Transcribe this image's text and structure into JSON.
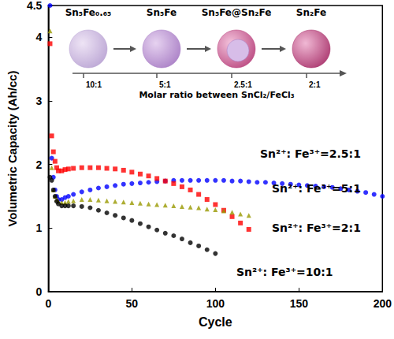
{
  "chart_data": {
    "type": "scatter",
    "x_label": "Cycle",
    "y_label": "Volumetric Capacity (Ah/cc)",
    "xlim": [
      0,
      200
    ],
    "xticks": [
      0,
      50,
      100,
      150,
      200
    ],
    "ylim": [
      0,
      4.5
    ],
    "yticks": [
      0,
      1,
      2,
      3,
      4
    ],
    "grid": false,
    "x": [
      1,
      2,
      3,
      4,
      5,
      6,
      8,
      10,
      12,
      15,
      20,
      25,
      30,
      35,
      40,
      45,
      50,
      55,
      60,
      65,
      70,
      75,
      80,
      85,
      90,
      95,
      100,
      105,
      110,
      115,
      120,
      125,
      130,
      135,
      140,
      145,
      150,
      155,
      160,
      165,
      170,
      175,
      180,
      185,
      190,
      195,
      200
    ],
    "series": [
      {
        "name": "Sn²⁺: Fe³⁺=2.5:1",
        "color": "#0000ff",
        "marker": "circle",
        "values": [
          4.5,
          2.1,
          1.8,
          1.6,
          1.5,
          1.45,
          1.45,
          1.48,
          1.5,
          1.53,
          1.57,
          1.6,
          1.63,
          1.65,
          1.67,
          1.69,
          1.7,
          1.71,
          1.72,
          1.73,
          1.74,
          1.75,
          1.75,
          1.75,
          1.75,
          1.75,
          1.75,
          1.75,
          1.74,
          1.74,
          1.73,
          1.72,
          1.72,
          1.71,
          1.7,
          1.69,
          1.68,
          1.67,
          1.66,
          1.65,
          1.64,
          1.62,
          1.6,
          1.58,
          1.56,
          1.53,
          1.5
        ]
      },
      {
        "name": "Sn²⁺: Fe³⁺=5:1",
        "color": "#ff0000",
        "marker": "square",
        "values": [
          3.9,
          2.45,
          2.2,
          2.05,
          1.95,
          1.9,
          1.9,
          1.92,
          1.93,
          1.94,
          1.95,
          1.95,
          1.95,
          1.94,
          1.93,
          1.91,
          1.88,
          1.85,
          1.82,
          1.78,
          1.74,
          1.7,
          1.65,
          1.6,
          1.53,
          1.45,
          1.37,
          1.28,
          1.18,
          1.08,
          0.98,
          null,
          null,
          null,
          null,
          null,
          null,
          null,
          null,
          null,
          null,
          null,
          null,
          null,
          null,
          null,
          null
        ]
      },
      {
        "name": "Sn²⁺: Fe³⁺=2:1",
        "color": "#999900",
        "marker": "triangle",
        "values": [
          4.1,
          1.95,
          1.6,
          1.5,
          1.45,
          1.42,
          1.4,
          1.4,
          1.42,
          1.43,
          1.45,
          1.45,
          1.44,
          1.43,
          1.42,
          1.41,
          1.4,
          1.39,
          1.38,
          1.37,
          1.36,
          1.35,
          1.34,
          1.33,
          1.32,
          1.3,
          1.29,
          1.27,
          1.25,
          1.22,
          1.2,
          null,
          null,
          null,
          null,
          null,
          null,
          null,
          null,
          null,
          null,
          null,
          null,
          null,
          null,
          null,
          null
        ]
      },
      {
        "name": "Sn²⁺: Fe³⁺=10:1",
        "color": "#000000",
        "marker": "circle",
        "values": [
          1.8,
          1.75,
          1.6,
          1.5,
          1.42,
          1.38,
          1.35,
          1.35,
          1.35,
          1.35,
          1.34,
          1.32,
          1.28,
          1.24,
          1.2,
          1.16,
          1.12,
          1.07,
          1.02,
          0.97,
          0.92,
          0.88,
          0.83,
          0.77,
          0.72,
          0.66,
          0.6,
          null,
          null,
          null,
          null,
          null,
          null,
          null,
          null,
          null,
          null,
          null,
          null,
          null,
          null,
          null,
          null,
          null,
          null,
          null,
          null
        ]
      }
    ],
    "inset": {
      "materials": [
        "Sn₅Fe₀.₆₅",
        "Sn₅Fe",
        "Sn₅Fe@Sn₂Fe",
        "Sn₂Fe"
      ],
      "ratios": [
        "10:1",
        "5:1",
        "2.5:1",
        "2:1"
      ],
      "axis_label": "Molar ratio between SnCl₂/FeCl₃"
    }
  }
}
